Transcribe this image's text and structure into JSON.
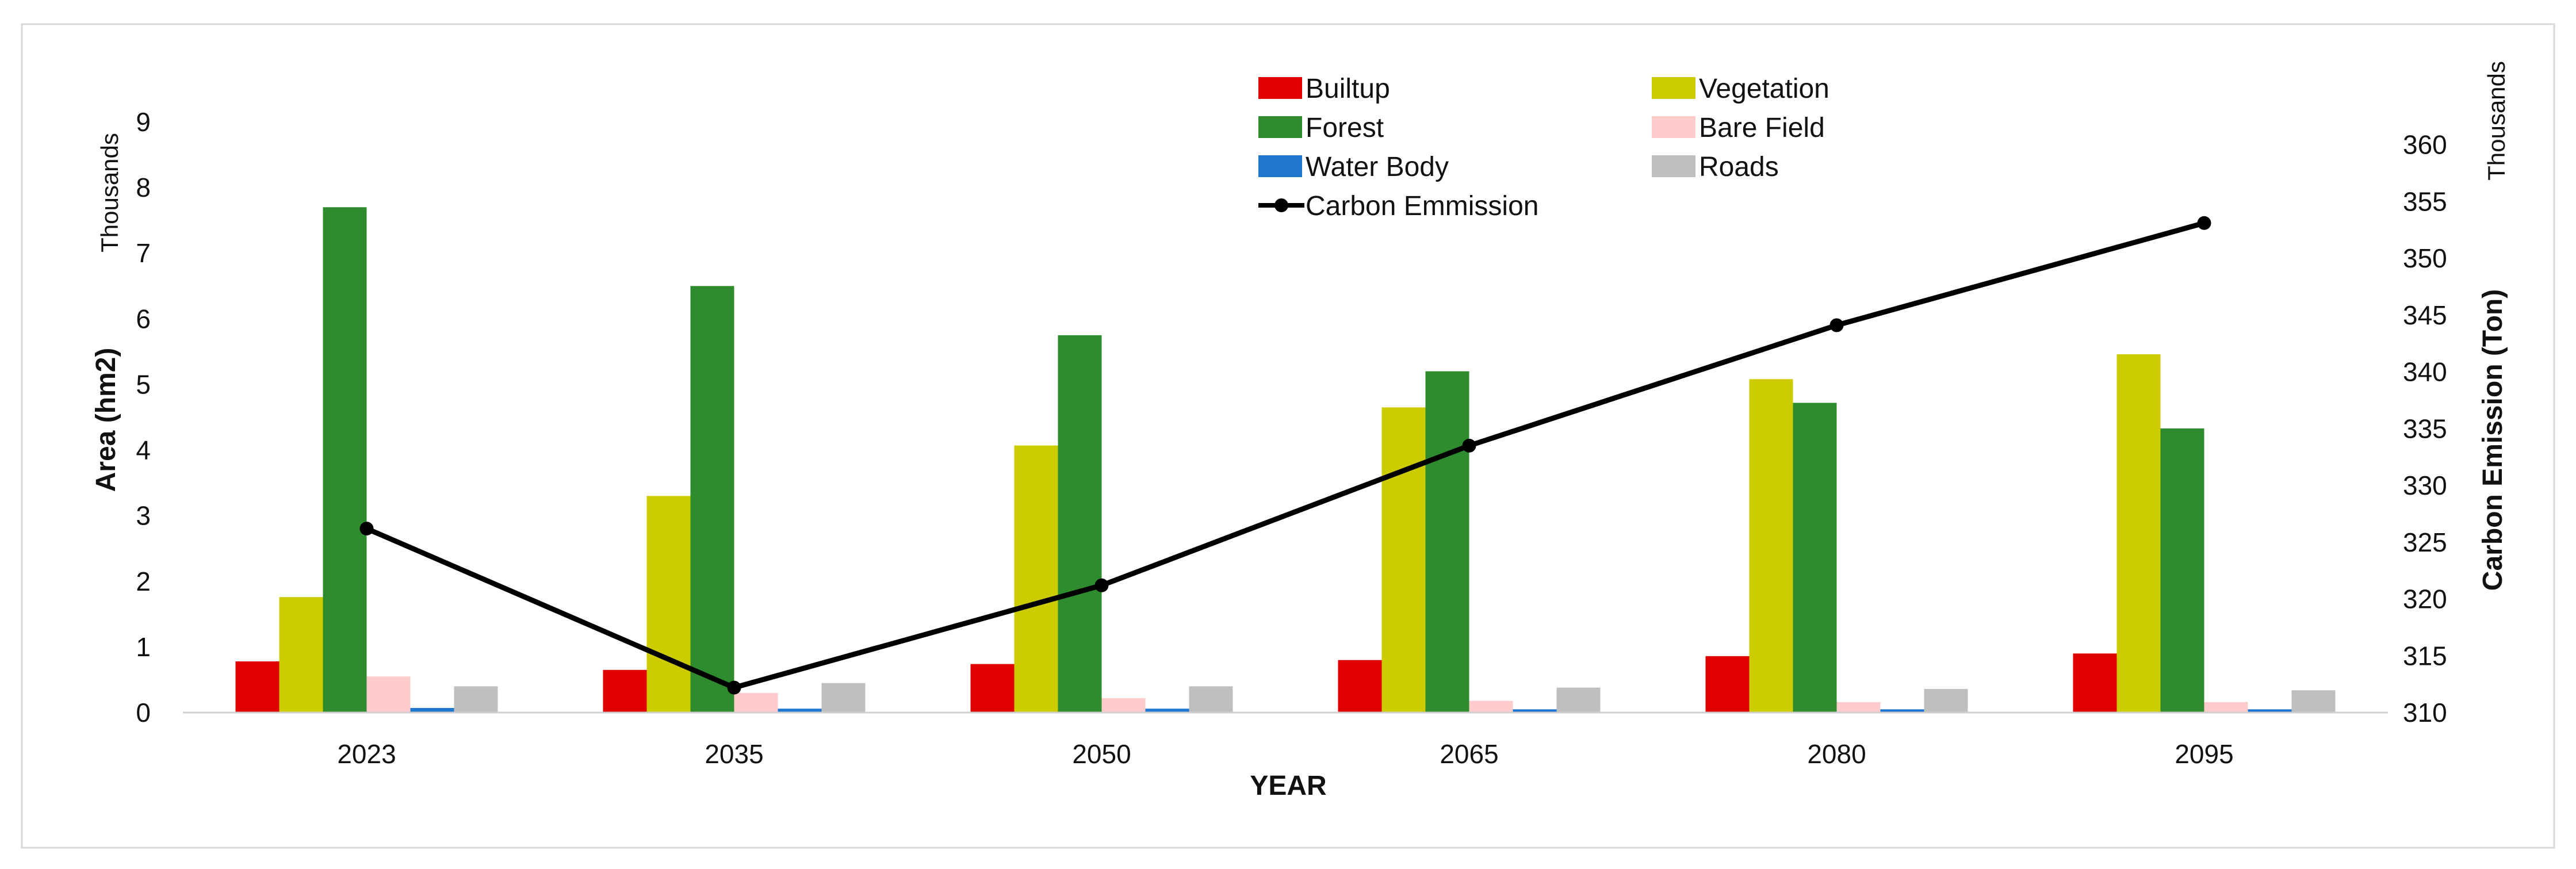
{
  "chart_data": {
    "type": "bar",
    "title": "",
    "categories": [
      "2023",
      "2035",
      "2050",
      "2065",
      "2080",
      "2095"
    ],
    "xlabel": "YEAR",
    "ylabel": "Area (hm2)",
    "ylabel_units": "Thousands",
    "y2label": "Carbon  Emission (Ton)",
    "y2label_units": "Thousands",
    "ylim": [
      0,
      9
    ],
    "yticks": [
      "0",
      "1",
      "2",
      "3",
      "4",
      "5",
      "6",
      "7",
      "8",
      "9"
    ],
    "y2lim": [
      310,
      362
    ],
    "y2ticks": [
      "310",
      "315",
      "320",
      "325",
      "330",
      "335",
      "340",
      "345",
      "350",
      "355",
      "360"
    ],
    "series": [
      {
        "name": "Builtup",
        "type": "bar",
        "color": "#e00000",
        "values": [
          0.78,
          0.65,
          0.74,
          0.8,
          0.86,
          0.9
        ]
      },
      {
        "name": "Vegetation",
        "type": "bar",
        "color": "#cccc00",
        "values": [
          1.76,
          3.3,
          4.07,
          4.65,
          5.08,
          5.46
        ]
      },
      {
        "name": "Forest",
        "type": "bar",
        "color": "#2e8b2e",
        "values": [
          7.7,
          6.5,
          5.75,
          5.2,
          4.72,
          4.33
        ]
      },
      {
        "name": "Bare Field",
        "type": "bar",
        "color": "#ffcccc",
        "values": [
          0.55,
          0.3,
          0.22,
          0.18,
          0.16,
          0.16
        ]
      },
      {
        "name": "Water Body",
        "type": "bar",
        "color": "#1f77d0",
        "values": [
          0.07,
          0.06,
          0.06,
          0.05,
          0.05,
          0.05
        ]
      },
      {
        "name": "Roads",
        "type": "bar",
        "color": "#bfbfbf",
        "values": [
          0.4,
          0.45,
          0.4,
          0.38,
          0.36,
          0.34
        ]
      },
      {
        "name": "Carbon Emmission",
        "type": "line",
        "axis": "right",
        "color": "#000000",
        "values": [
          326.2,
          312.2,
          321.2,
          333.5,
          344.1,
          353.1
        ]
      }
    ],
    "legend": {
      "position": "top-center",
      "items": [
        {
          "label": "Builtup",
          "series": 0
        },
        {
          "label": "Vegetation",
          "series": 1
        },
        {
          "label": "Forest",
          "series": 2
        },
        {
          "label": "Bare Field",
          "series": 3
        },
        {
          "label": "Water Body",
          "series": 4
        },
        {
          "label": "Roads",
          "series": 5
        },
        {
          "label": "Carbon Emmission",
          "series": 6
        }
      ]
    },
    "grid": false
  }
}
